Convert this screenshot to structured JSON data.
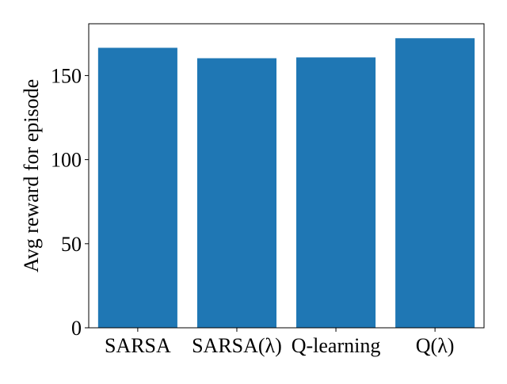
{
  "chart_data": {
    "type": "bar",
    "title": "",
    "xlabel": "",
    "ylabel": "Avg reward for episode",
    "categories": [
      "SARSA",
      "SARSA(λ)",
      "Q-learning",
      "Q(λ)"
    ],
    "values": [
      166.5,
      160.3,
      160.8,
      172.2
    ],
    "ylim": [
      0,
      180.8
    ],
    "yticks": [
      0,
      50,
      100,
      150
    ],
    "ytick_labels": [
      "0",
      "50",
      "100",
      "150"
    ],
    "grid": false,
    "legend": "none",
    "colors": {
      "bar": "#1f77b4",
      "axis": "#000000",
      "background": "#ffffff"
    }
  }
}
